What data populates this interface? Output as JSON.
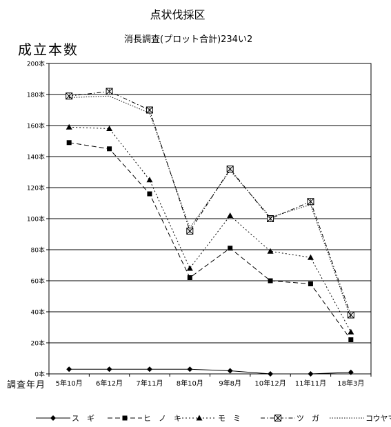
{
  "chart_data": {
    "type": "line",
    "title": "点状伐採区",
    "subtitle": "消長調査(プロット合計)234い2",
    "ylabel": "成立本数",
    "xlabel": "調査年月",
    "categories": [
      "5年10月",
      "6年12月",
      "7年11月",
      "8年10月",
      "9年8月",
      "10年12月",
      "11年11月",
      "18年3月"
    ],
    "ylim": [
      0,
      200
    ],
    "y_tick_step": 20,
    "y_tick_suffix": "本",
    "grid": true,
    "legend_position": "bottom",
    "series": [
      {
        "name": "ス　ギ",
        "marker": "diamond",
        "dash": "solid",
        "values": [
          3,
          3,
          3,
          3,
          2,
          0,
          0,
          1
        ]
      },
      {
        "name": "ヒ　ノ　キ",
        "marker": "square",
        "dash": "dashed",
        "values": [
          149,
          145,
          116,
          62,
          81,
          60,
          58,
          22
        ]
      },
      {
        "name": "モ　ミ",
        "marker": "triangle",
        "dash": "dotted",
        "values": [
          159,
          158,
          125,
          68,
          102,
          79,
          75,
          27
        ]
      },
      {
        "name": "ツ　ガ",
        "marker": "boxx",
        "dash": "dashdot",
        "values": [
          179,
          182,
          170,
          92,
          132,
          100,
          111,
          38
        ]
      },
      {
        "name": "コウヤマキ",
        "marker": "none",
        "dash": "densedot",
        "values": [
          178,
          179,
          168,
          94,
          131,
          101,
          109,
          36
        ]
      }
    ]
  }
}
